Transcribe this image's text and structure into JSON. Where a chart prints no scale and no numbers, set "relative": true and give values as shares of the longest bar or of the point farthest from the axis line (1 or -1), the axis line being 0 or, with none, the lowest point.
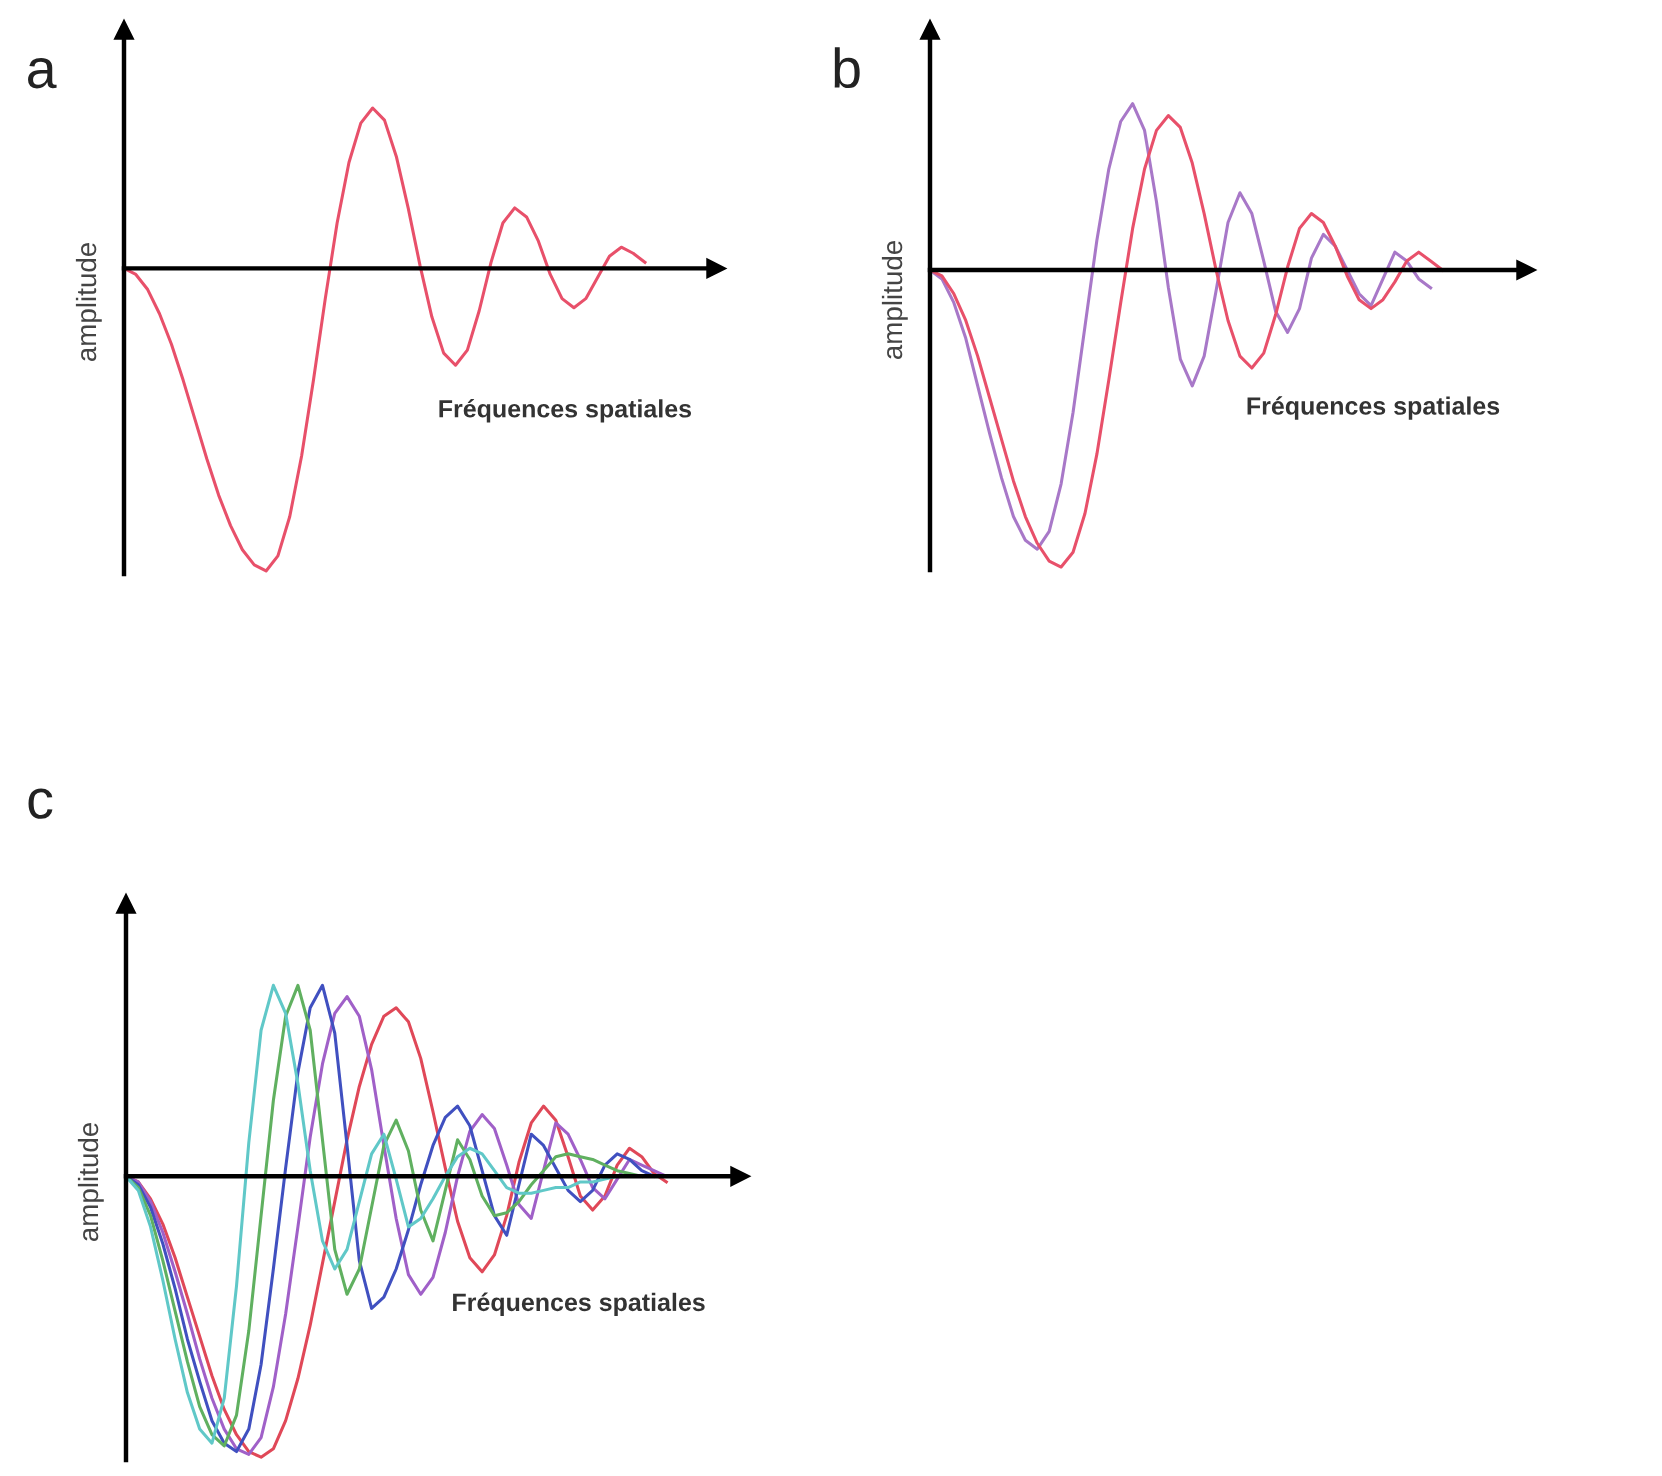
{
  "chart_data": [
    {
      "type": "line",
      "title": "a",
      "ylabel": "amplitude",
      "xlabel": "Fréquences spatiales",
      "relative": true,
      "marker": "none",
      "line_style": "solid",
      "categories": [
        null,
        null,
        null,
        null,
        null,
        null,
        null,
        null,
        null,
        null,
        null,
        null,
        null,
        null,
        null,
        null,
        null,
        null,
        null,
        null,
        null,
        null,
        null,
        null,
        null,
        null,
        null,
        null,
        null,
        null,
        null,
        null,
        null,
        null,
        null,
        null,
        null,
        null,
        null,
        null,
        null,
        null,
        null,
        null,
        null
      ],
      "series": [
        {
          "color": "#e8506a",
          "values": [
            0.0,
            -0.02,
            -0.07,
            -0.15,
            -0.25,
            -0.37,
            -0.5,
            -0.63,
            -0.75,
            -0.85,
            -0.93,
            -0.98,
            -1.0,
            -0.95,
            -0.82,
            -0.62,
            -0.37,
            -0.1,
            0.15,
            0.35,
            0.48,
            0.53,
            0.49,
            0.37,
            0.2,
            0.01,
            -0.16,
            -0.28,
            -0.32,
            -0.27,
            -0.14,
            0.02,
            0.15,
            0.2,
            0.17,
            0.09,
            -0.02,
            -0.1,
            -0.13,
            -0.1,
            -0.03,
            0.04,
            0.07,
            0.05,
            0.02
          ]
        }
      ]
    },
    {
      "type": "line",
      "title": "b",
      "ylabel": "amplitude",
      "xlabel": "Fréquences spatiales",
      "relative": true,
      "marker": "none",
      "line_style": "solid",
      "categories": [
        null,
        null,
        null,
        null,
        null,
        null,
        null,
        null,
        null,
        null,
        null,
        null,
        null,
        null,
        null,
        null,
        null,
        null,
        null,
        null,
        null,
        null,
        null,
        null,
        null,
        null,
        null,
        null,
        null,
        null,
        null,
        null,
        null,
        null,
        null,
        null,
        null,
        null,
        null,
        null,
        null,
        null,
        null,
        null,
        null
      ],
      "series": [
        {
          "color": "#a878c8",
          "values": [
            0.0,
            -0.03,
            -0.11,
            -0.23,
            -0.39,
            -0.55,
            -0.7,
            -0.83,
            -0.91,
            -0.94,
            -0.88,
            -0.72,
            -0.48,
            -0.19,
            0.1,
            0.34,
            0.5,
            0.56,
            0.47,
            0.23,
            -0.06,
            -0.3,
            -0.39,
            -0.29,
            -0.07,
            0.16,
            0.26,
            0.19,
            0.03,
            -0.14,
            -0.21,
            -0.13,
            0.04,
            0.12,
            0.08,
            0.0,
            -0.08,
            -0.12,
            -0.03,
            0.06,
            0.03,
            -0.03,
            -0.06,
            null,
            null
          ]
        },
        {
          "color": "#e8506a",
          "values": [
            0.0,
            -0.02,
            -0.08,
            -0.17,
            -0.29,
            -0.43,
            -0.57,
            -0.71,
            -0.83,
            -0.92,
            -0.98,
            -1.0,
            -0.95,
            -0.82,
            -0.62,
            -0.37,
            -0.11,
            0.14,
            0.34,
            0.47,
            0.52,
            0.48,
            0.36,
            0.19,
            0.0,
            -0.17,
            -0.29,
            -0.33,
            -0.28,
            -0.15,
            0.01,
            0.14,
            0.19,
            0.16,
            0.08,
            -0.02,
            -0.1,
            -0.13,
            -0.1,
            -0.04,
            0.03,
            0.06,
            0.03,
            0.0,
            null
          ]
        }
      ]
    },
    {
      "type": "line",
      "title": "c",
      "ylabel": "amplitude",
      "xlabel": "Fréquences spatiales",
      "relative": true,
      "marker": "none",
      "line_style": "solid",
      "categories": [
        null,
        null,
        null,
        null,
        null,
        null,
        null,
        null,
        null,
        null,
        null,
        null,
        null,
        null,
        null,
        null,
        null,
        null,
        null,
        null,
        null,
        null,
        null,
        null,
        null,
        null,
        null,
        null,
        null,
        null,
        null,
        null,
        null,
        null,
        null,
        null,
        null,
        null,
        null,
        null,
        null,
        null,
        null,
        null,
        null
      ],
      "series": [
        {
          "color": "#e04858",
          "values": [
            0.0,
            -0.02,
            -0.08,
            -0.17,
            -0.29,
            -0.43,
            -0.57,
            -0.71,
            -0.83,
            -0.92,
            -0.98,
            -1.0,
            -0.97,
            -0.87,
            -0.72,
            -0.53,
            -0.31,
            -0.09,
            0.13,
            0.32,
            0.47,
            0.57,
            0.6,
            0.55,
            0.42,
            0.23,
            0.03,
            -0.16,
            -0.29,
            -0.34,
            -0.28,
            -0.14,
            0.05,
            0.19,
            0.25,
            0.2,
            0.07,
            -0.07,
            -0.12,
            -0.07,
            0.04,
            0.1,
            0.07,
            0.01,
            -0.02
          ]
        },
        {
          "color": "#a060c8",
          "values": [
            0.0,
            -0.02,
            -0.09,
            -0.2,
            -0.34,
            -0.49,
            -0.65,
            -0.79,
            -0.9,
            -0.97,
            -0.99,
            -0.93,
            -0.75,
            -0.49,
            -0.18,
            0.14,
            0.4,
            0.58,
            0.64,
            0.57,
            0.38,
            0.11,
            -0.15,
            -0.35,
            -0.42,
            -0.36,
            -0.2,
            0.0,
            0.16,
            0.22,
            0.17,
            0.04,
            -0.1,
            -0.15,
            0.02,
            0.19,
            0.15,
            0.06,
            -0.04,
            -0.08,
            -0.01,
            0.06,
            0.04,
            0.02,
            0.0
          ]
        },
        {
          "color": "#4050c0",
          "values": [
            0.0,
            -0.03,
            -0.11,
            -0.24,
            -0.4,
            -0.58,
            -0.73,
            -0.87,
            -0.95,
            -0.98,
            -0.9,
            -0.67,
            -0.33,
            0.03,
            0.37,
            0.6,
            0.68,
            0.51,
            0.11,
            -0.3,
            -0.47,
            -0.43,
            -0.33,
            -0.19,
            -0.03,
            0.11,
            0.21,
            0.25,
            0.18,
            0.02,
            -0.14,
            -0.21,
            -0.03,
            0.15,
            0.11,
            0.03,
            -0.05,
            -0.09,
            -0.05,
            0.04,
            0.08,
            0.06,
            0.02,
            0.0,
            null
          ]
        },
        {
          "color": "#60b060",
          "values": [
            0.0,
            -0.04,
            -0.14,
            -0.3,
            -0.48,
            -0.66,
            -0.82,
            -0.92,
            -0.96,
            -0.85,
            -0.55,
            -0.14,
            0.27,
            0.57,
            0.68,
            0.52,
            0.13,
            -0.26,
            -0.42,
            -0.33,
            -0.11,
            0.11,
            0.2,
            0.09,
            -0.12,
            -0.23,
            -0.05,
            0.13,
            0.06,
            -0.07,
            -0.14,
            -0.13,
            -0.09,
            -0.03,
            0.02,
            0.07,
            0.08,
            0.07,
            0.06,
            0.04,
            0.02,
            0.01,
            0.0,
            null,
            null
          ]
        },
        {
          "color": "#60c8c8",
          "values": [
            0.0,
            -0.05,
            -0.18,
            -0.37,
            -0.58,
            -0.77,
            -0.9,
            -0.95,
            -0.79,
            -0.39,
            0.12,
            0.52,
            0.68,
            0.58,
            0.33,
            0.02,
            -0.23,
            -0.33,
            -0.26,
            -0.09,
            0.08,
            0.15,
            -0.01,
            -0.18,
            -0.15,
            -0.08,
            0.0,
            0.07,
            0.1,
            0.08,
            0.02,
            -0.04,
            -0.06,
            -0.06,
            -0.05,
            -0.04,
            -0.04,
            -0.02,
            -0.02,
            -0.01,
            0.0,
            0.0,
            null,
            null,
            null
          ]
        }
      ]
    }
  ]
}
